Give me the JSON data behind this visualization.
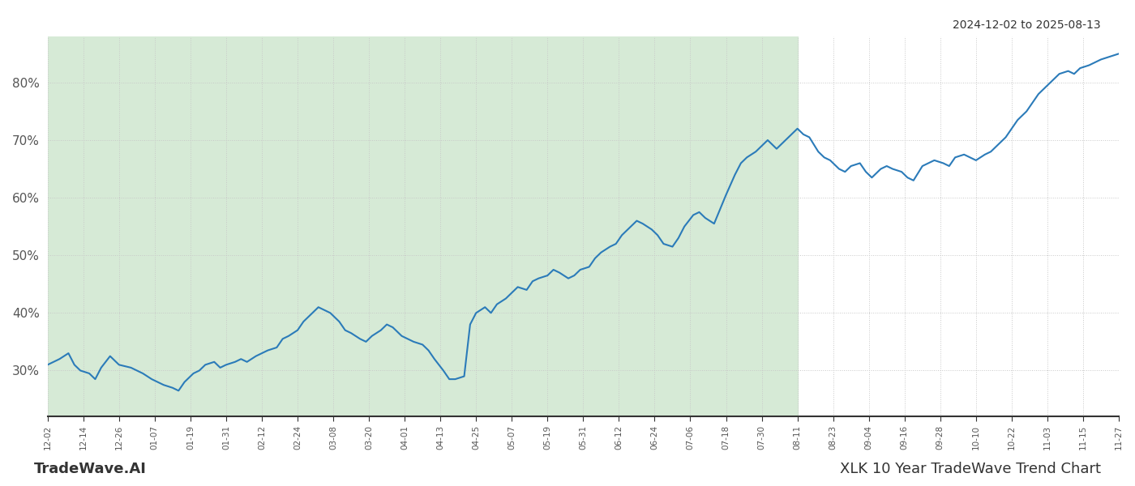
{
  "title_top_right": "2024-12-02 to 2025-08-13",
  "title_bottom_left": "TradeWave.AI",
  "title_bottom_right": "XLK 10 Year TradeWave Trend Chart",
  "line_color": "#2b7bb9",
  "line_width": 1.5,
  "shaded_color": "#d6ead6",
  "background_color": "#ffffff",
  "grid_color": "#c8c8c8",
  "grid_style": ":",
  "ylim": [
    22,
    88
  ],
  "yticks": [
    30,
    40,
    50,
    60,
    70,
    80
  ],
  "ytick_labels": [
    "30%",
    "40%",
    "50%",
    "60%",
    "70%",
    "80%"
  ],
  "shaded_start_date": "2024-12-02",
  "shaded_end_date": "2025-08-11",
  "dates": [
    "2024-12-02",
    "2024-12-04",
    "2024-12-06",
    "2024-12-09",
    "2024-12-11",
    "2024-12-13",
    "2024-12-16",
    "2024-12-18",
    "2024-12-20",
    "2024-12-23",
    "2024-12-26",
    "2024-12-30",
    "2025-01-01",
    "2025-01-03",
    "2025-01-06",
    "2025-01-08",
    "2025-01-10",
    "2025-01-13",
    "2025-01-15",
    "2025-01-17",
    "2025-01-20",
    "2025-01-22",
    "2025-01-24",
    "2025-01-27",
    "2025-01-29",
    "2025-01-31",
    "2025-02-03",
    "2025-02-05",
    "2025-02-07",
    "2025-02-10",
    "2025-02-12",
    "2025-02-14",
    "2025-02-17",
    "2025-02-19",
    "2025-02-21",
    "2025-02-24",
    "2025-02-26",
    "2025-02-28",
    "2025-03-03",
    "2025-03-05",
    "2025-03-07",
    "2025-03-10",
    "2025-03-12",
    "2025-03-14",
    "2025-03-17",
    "2025-03-19",
    "2025-03-21",
    "2025-03-24",
    "2025-03-26",
    "2025-03-28",
    "2025-03-31",
    "2025-04-02",
    "2025-04-04",
    "2025-04-07",
    "2025-04-09",
    "2025-04-11",
    "2025-04-14",
    "2025-04-16",
    "2025-04-18",
    "2025-04-21",
    "2025-04-23",
    "2025-04-25",
    "2025-04-28",
    "2025-04-30",
    "2025-05-02",
    "2025-05-05",
    "2025-05-07",
    "2025-05-09",
    "2025-05-12",
    "2025-05-14",
    "2025-05-16",
    "2025-05-19",
    "2025-05-21",
    "2025-05-23",
    "2025-05-26",
    "2025-05-28",
    "2025-05-30",
    "2025-06-02",
    "2025-06-04",
    "2025-06-06",
    "2025-06-09",
    "2025-06-11",
    "2025-06-13",
    "2025-06-16",
    "2025-06-18",
    "2025-06-20",
    "2025-06-23",
    "2025-06-25",
    "2025-06-27",
    "2025-06-30",
    "2025-07-02",
    "2025-07-04",
    "2025-07-07",
    "2025-07-09",
    "2025-07-11",
    "2025-07-14",
    "2025-07-16",
    "2025-07-18",
    "2025-07-21",
    "2025-07-23",
    "2025-07-25",
    "2025-07-28",
    "2025-07-30",
    "2025-08-01",
    "2025-08-04",
    "2025-08-06",
    "2025-08-08",
    "2025-08-11",
    "2025-08-13",
    "2025-08-15",
    "2025-08-18",
    "2025-08-20",
    "2025-08-22",
    "2025-08-25",
    "2025-08-27",
    "2025-08-29",
    "2025-09-01",
    "2025-09-03",
    "2025-09-05",
    "2025-09-08",
    "2025-09-10",
    "2025-09-12",
    "2025-09-15",
    "2025-09-17",
    "2025-09-19",
    "2025-09-22",
    "2025-09-24",
    "2025-09-26",
    "2025-09-29",
    "2025-10-01",
    "2025-10-03",
    "2025-10-06",
    "2025-10-08",
    "2025-10-10",
    "2025-10-13",
    "2025-10-15",
    "2025-10-17",
    "2025-10-20",
    "2025-10-22",
    "2025-10-24",
    "2025-10-27",
    "2025-10-29",
    "2025-10-31",
    "2025-11-03",
    "2025-11-05",
    "2025-11-07",
    "2025-11-10",
    "2025-11-12",
    "2025-11-14",
    "2025-11-17",
    "2025-11-19",
    "2025-11-21",
    "2025-11-24",
    "2025-11-27"
  ],
  "values": [
    31.0,
    31.5,
    32.0,
    33.0,
    31.0,
    30.0,
    29.5,
    28.5,
    30.5,
    32.5,
    31.0,
    30.5,
    30.0,
    29.5,
    28.5,
    28.0,
    27.5,
    27.0,
    26.5,
    28.0,
    29.5,
    30.0,
    31.0,
    31.5,
    30.5,
    31.0,
    31.5,
    32.0,
    31.5,
    32.5,
    33.0,
    33.5,
    34.0,
    35.5,
    36.0,
    37.0,
    38.5,
    39.5,
    41.0,
    40.5,
    40.0,
    38.5,
    37.0,
    36.5,
    35.5,
    35.0,
    36.0,
    37.0,
    38.0,
    37.5,
    36.0,
    35.5,
    35.0,
    34.5,
    33.5,
    32.0,
    30.0,
    28.5,
    28.5,
    29.0,
    38.0,
    40.0,
    41.0,
    40.0,
    41.5,
    42.5,
    43.5,
    44.5,
    44.0,
    45.5,
    46.0,
    46.5,
    47.5,
    47.0,
    46.0,
    46.5,
    47.5,
    48.0,
    49.5,
    50.5,
    51.5,
    52.0,
    53.5,
    55.0,
    56.0,
    55.5,
    54.5,
    53.5,
    52.0,
    51.5,
    53.0,
    55.0,
    57.0,
    57.5,
    56.5,
    55.5,
    58.0,
    60.5,
    64.0,
    66.0,
    67.0,
    68.0,
    69.0,
    70.0,
    68.5,
    69.5,
    70.5,
    72.0,
    71.0,
    70.5,
    68.0,
    67.0,
    66.5,
    65.0,
    64.5,
    65.5,
    66.0,
    64.5,
    63.5,
    65.0,
    65.5,
    65.0,
    64.5,
    63.5,
    63.0,
    65.5,
    66.0,
    66.5,
    66.0,
    65.5,
    67.0,
    67.5,
    67.0,
    66.5,
    67.5,
    68.0,
    69.0,
    70.5,
    72.0,
    73.5,
    75.0,
    76.5,
    78.0,
    79.5,
    80.5,
    81.5,
    82.0,
    81.5,
    82.5,
    83.0,
    83.5,
    84.0,
    84.5,
    85.0
  ],
  "xtick_dates": [
    "2024-12-02",
    "2024-12-14",
    "2024-12-26",
    "2025-01-07",
    "2025-01-19",
    "2025-01-31",
    "2025-02-12",
    "2025-02-24",
    "2025-03-08",
    "2025-03-20",
    "2025-04-01",
    "2025-04-13",
    "2025-04-25",
    "2025-05-07",
    "2025-05-19",
    "2025-05-31",
    "2025-06-12",
    "2025-06-24",
    "2025-07-06",
    "2025-07-18",
    "2025-07-30",
    "2025-08-11",
    "2025-08-23",
    "2025-09-04",
    "2025-09-16",
    "2025-09-28",
    "2025-10-10",
    "2025-10-22",
    "2025-11-03",
    "2025-11-15",
    "2025-11-27"
  ],
  "xtick_labels": [
    "12-02",
    "12-14",
    "12-26",
    "01-07",
    "01-19",
    "01-31",
    "02-12",
    "02-24",
    "03-08",
    "03-20",
    "04-01",
    "04-13",
    "04-25",
    "05-07",
    "05-19",
    "05-31",
    "06-12",
    "06-24",
    "07-06",
    "07-18",
    "07-30",
    "08-11",
    "08-23",
    "09-04",
    "09-16",
    "09-28",
    "10-10",
    "10-22",
    "11-03",
    "11-15",
    "11-27"
  ]
}
